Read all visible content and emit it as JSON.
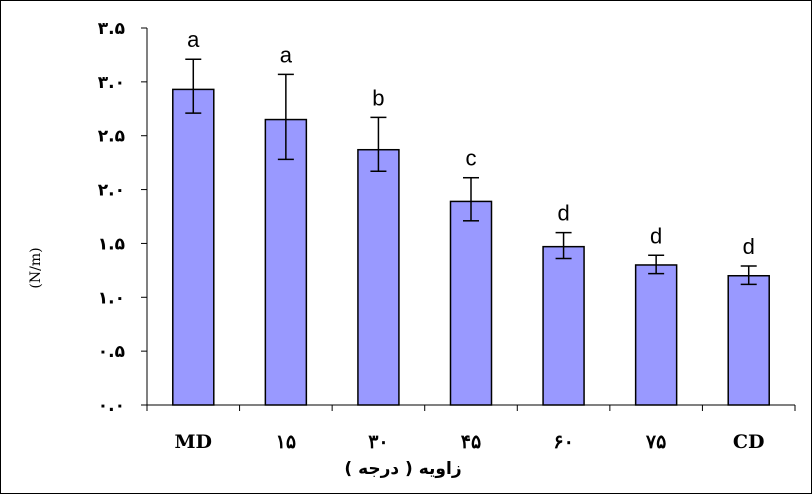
{
  "chart_data": {
    "type": "bar",
    "categories": [
      "MD",
      "۱۵",
      "۳۰",
      "۴۵",
      "۶۰",
      "۷۵",
      "CD"
    ],
    "values": [
      2.93,
      2.65,
      2.37,
      1.89,
      1.47,
      1.3,
      1.2
    ],
    "error_upper": [
      3.21,
      3.07,
      2.67,
      2.11,
      1.6,
      1.39,
      1.29
    ],
    "error_lower": [
      2.71,
      2.28,
      2.17,
      1.71,
      1.36,
      1.22,
      1.12
    ],
    "significance_labels": [
      "a",
      "a",
      "b",
      "c",
      "d",
      "d",
      "d"
    ],
    "ylim": [
      0,
      3.5
    ],
    "y_ticks": [
      0,
      0.5,
      1.0,
      1.5,
      2.0,
      2.5,
      3.0,
      3.5
    ],
    "y_tick_labels": [
      "۰.۰",
      "۰.۵",
      "۱.۰",
      "۱.۵",
      "۲.۰",
      "۲.۵",
      "۳.۰",
      "۳.۵"
    ],
    "xlabel": "زاویه ( درجه )",
    "ylabel": "(N/m)",
    "bar_color": "#9999ff",
    "bar_stroke": "#000000",
    "grid": false,
    "legend": "none"
  }
}
